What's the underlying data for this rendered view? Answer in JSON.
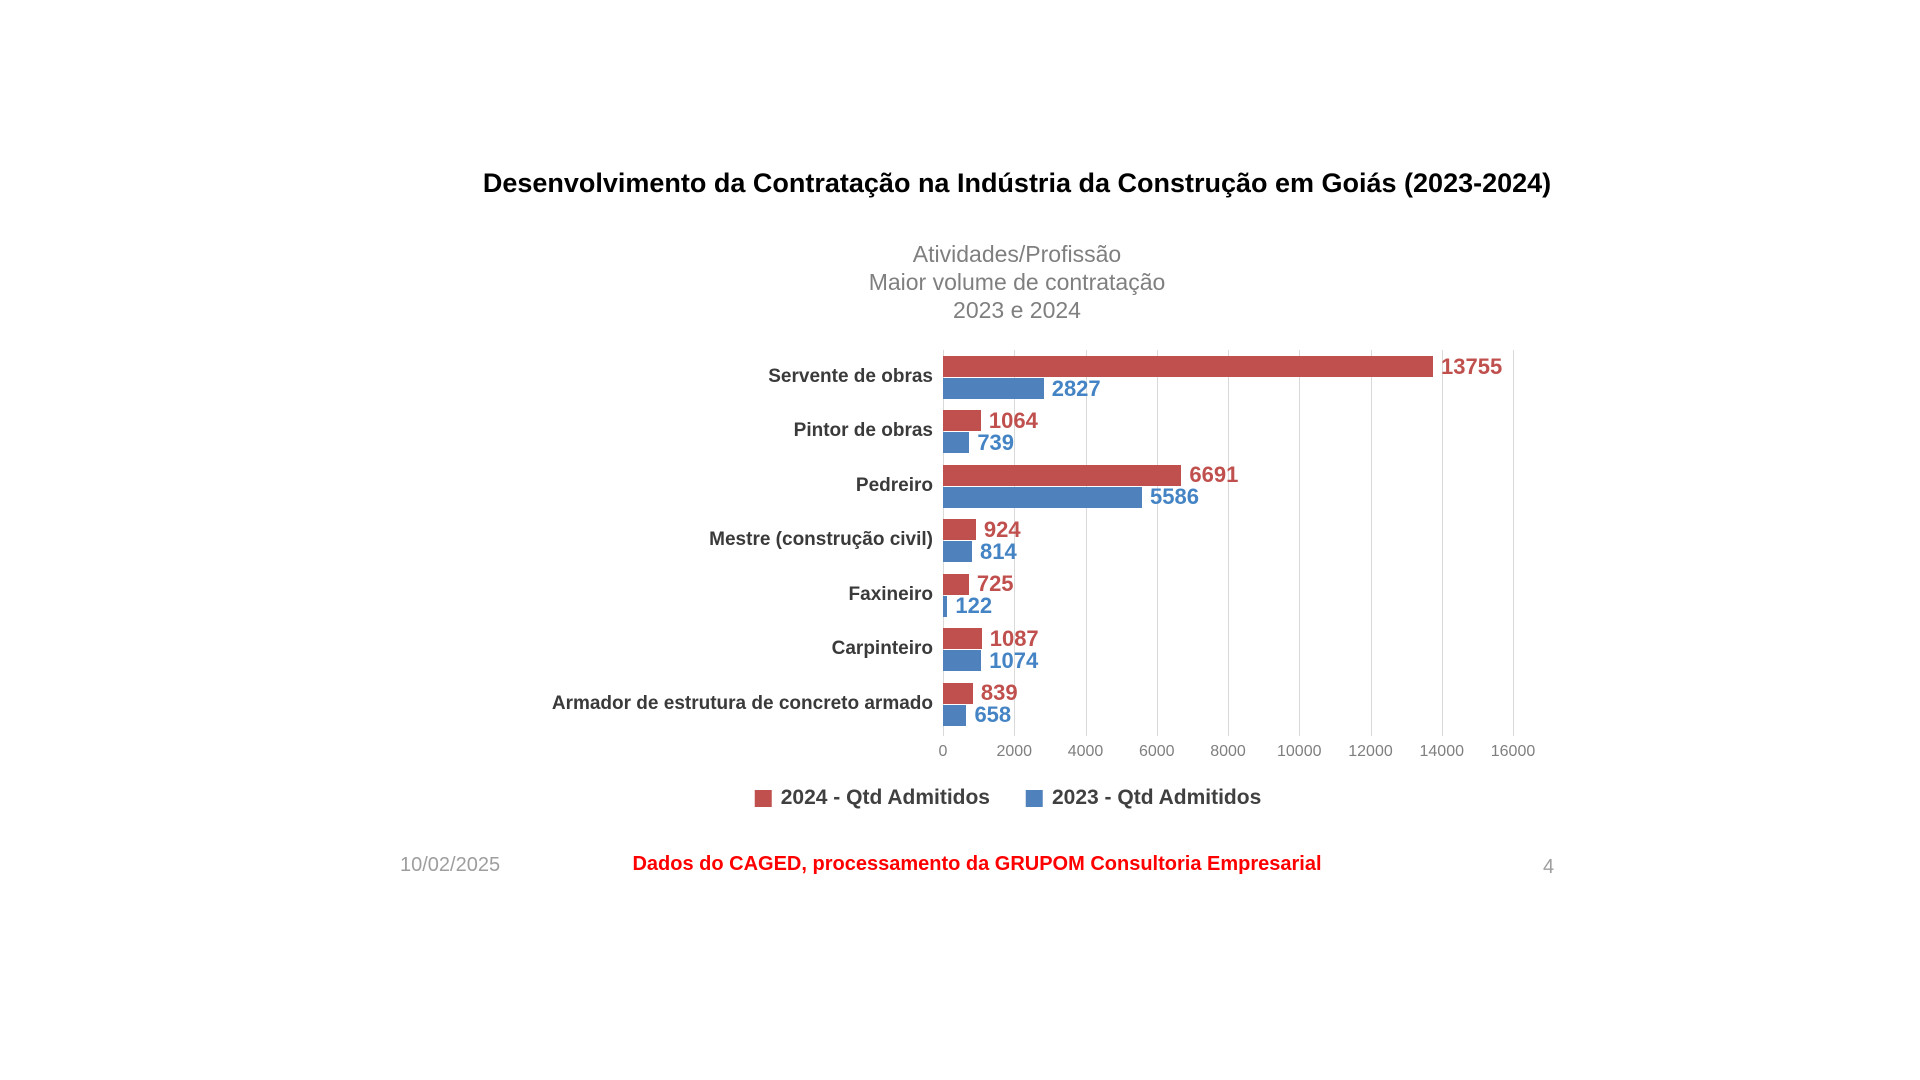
{
  "title": "Desenvolvimento da Contratação na Indústria da Construção em Goiás (2023-2024)",
  "footer": {
    "date": "10/02/2025",
    "note": "Dados do CAGED, processamento da GRUPOM Consultoria Empresarial",
    "page_number": "4"
  },
  "chart_data": {
    "type": "bar",
    "orientation": "horizontal",
    "subtitle_lines": [
      "Atividades/Profissão",
      "Maior volume de contratação",
      "2023 e 2024"
    ],
    "categories": [
      "Servente de obras",
      "Pintor de obras",
      "Pedreiro",
      "Mestre (construção civil)",
      "Faxineiro",
      "Carpinteiro",
      "Armador de estrutura de concreto armado"
    ],
    "series": [
      {
        "name": "2024 - Qtd Admitidos",
        "color": "#C0504D",
        "label_color": "#C0504D",
        "values": [
          13755,
          1064,
          6691,
          924,
          725,
          1087,
          839
        ]
      },
      {
        "name": "2023 - Qtd Admitidos",
        "color": "#4F81BD",
        "label_color": "#4484C4",
        "values": [
          2827,
          739,
          5586,
          814,
          122,
          1074,
          658
        ]
      }
    ],
    "xlim": [
      0,
      16000
    ],
    "x_ticks": [
      0,
      2000,
      4000,
      6000,
      8000,
      10000,
      12000,
      14000,
      16000
    ],
    "grid": true,
    "gridline_color": "#d9d9d9",
    "legend_position": "bottom"
  }
}
